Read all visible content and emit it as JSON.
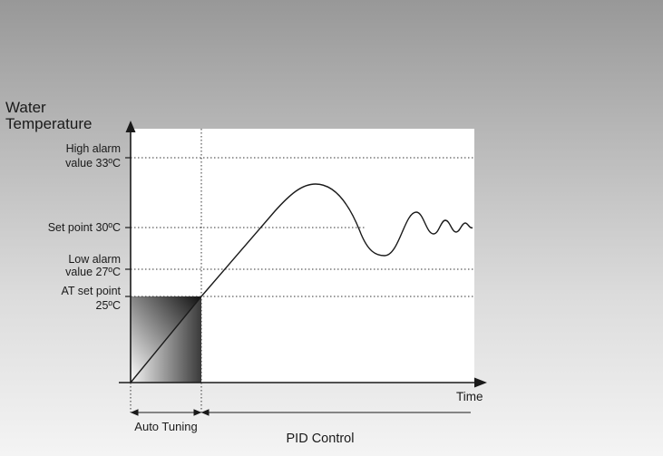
{
  "diagram": {
    "y_axis_title_line1": "Water",
    "y_axis_title_line2": "Temperature",
    "x_axis_title": "Time",
    "levels": {
      "high_alarm": {
        "line1": "High alarm",
        "line2": "value 33ºC",
        "value": 33
      },
      "set_point": {
        "line1": "Set point 30ºC",
        "value": 30
      },
      "low_alarm": {
        "line1": "Low alarm",
        "line2": "value 27ºC",
        "value": 27
      },
      "at_set_point": {
        "line1": "AT set point",
        "line2": "25ºC",
        "value": 25
      }
    },
    "phases": {
      "auto_tuning": "Auto Tuning",
      "pid_control": "PID Control"
    }
  },
  "colors": {
    "panel": "#ffffff",
    "line": "#1a1a1a",
    "guide": "#333333"
  }
}
